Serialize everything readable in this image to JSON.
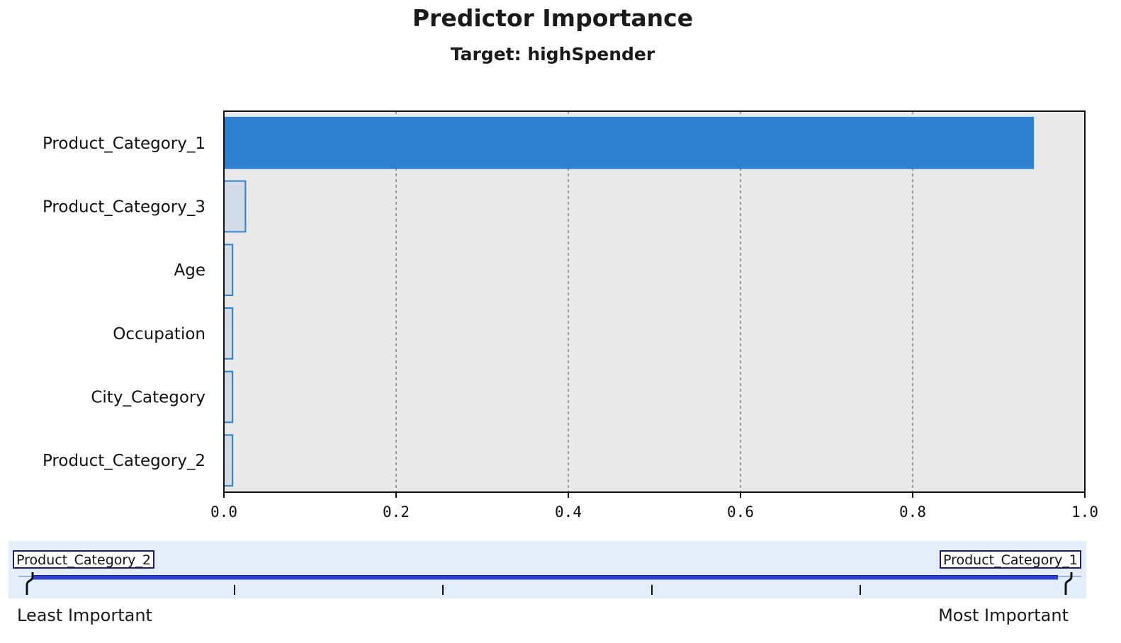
{
  "chart_data": {
    "type": "bar",
    "orientation": "horizontal",
    "title": "Predictor Importance",
    "subtitle": "Target: highSpender",
    "categories": [
      "Product_Category_1",
      "Product_Category_3",
      "Age",
      "Occupation",
      "City_Category",
      "Product_Category_2"
    ],
    "values": [
      0.94,
      0.025,
      0.01,
      0.01,
      0.01,
      0.01
    ],
    "highlighted_category": "Product_Category_1",
    "xlim": [
      0.0,
      1.0
    ],
    "xticks": [
      "0.0",
      "0.2",
      "0.4",
      "0.6",
      "0.8",
      "1.0"
    ],
    "xtick_values": [
      0.0,
      0.2,
      0.4,
      0.6,
      0.8,
      1.0
    ],
    "grid": "vertical dashed",
    "colors": {
      "highlight_bar": "#2e80d0",
      "bar_fill": "#d3dce6",
      "bar_edge": "#2e80d0",
      "plot_background": "#e9e9e9"
    }
  },
  "slider": {
    "min_label": "Product_Category_2",
    "max_label": "Product_Category_1",
    "least_label": "Least Important",
    "most_label": "Most Important",
    "track_color": "#2f3fd0",
    "panel_color": "#e4eefb"
  }
}
